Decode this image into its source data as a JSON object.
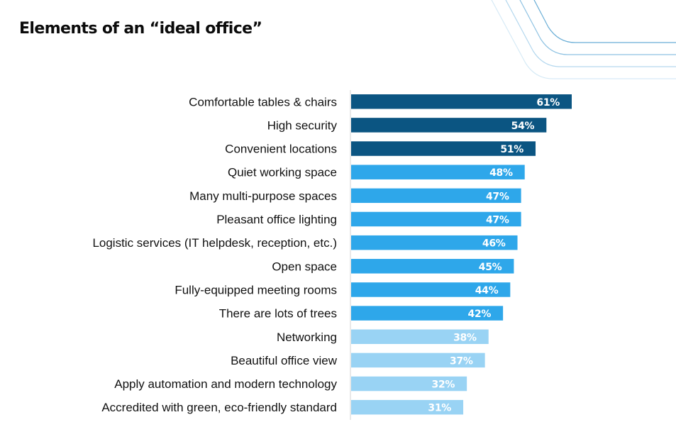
{
  "chart_data": {
    "type": "bar",
    "orientation": "horizontal",
    "title": "Elements of an “ideal office”",
    "xlabel": "",
    "ylabel": "",
    "xlim": [
      0,
      61
    ],
    "grid": false,
    "legend": "none",
    "value_format": "{v}%",
    "categories": [
      "Comfortable tables & chairs",
      "High security",
      "Convenient locations",
      "Quiet working space",
      "Many multi-purpose spaces",
      "Pleasant office lighting",
      "Logistic services (IT helpdesk, reception, etc.)",
      "Open space",
      "Fully-equipped meeting rooms",
      "There are lots of trees",
      "Networking",
      "Beautiful office view",
      "Apply automation and modern technology",
      "Accredited with green, eco-friendly standard"
    ],
    "values": [
      61,
      54,
      51,
      48,
      47,
      47,
      46,
      45,
      44,
      42,
      38,
      37,
      32,
      31
    ],
    "value_labels": [
      "61%",
      "54%",
      "51%",
      "48%",
      "47%",
      "47%",
      "46%",
      "45%",
      "44%",
      "42%",
      "38%",
      "37%",
      "32%",
      "31%"
    ],
    "tiers": [
      "top",
      "top",
      "top",
      "mid",
      "mid",
      "mid",
      "mid",
      "mid",
      "mid",
      "mid",
      "low",
      "low",
      "low",
      "low"
    ]
  },
  "colors": {
    "top": "#0b5582",
    "mid": "#2ea7ea",
    "low": "#99d3f4",
    "axis": "#e2e2e2",
    "decor_lines": [
      "#6aaed6",
      "#8ec2e2",
      "#b3d7ee",
      "#d6eaf6"
    ]
  }
}
